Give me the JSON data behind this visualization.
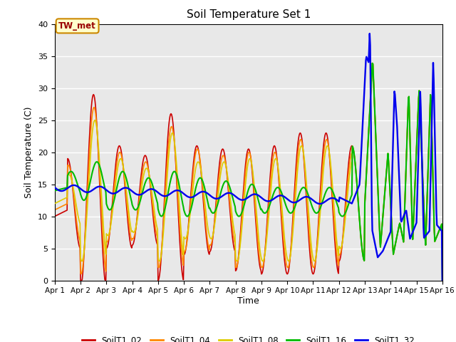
{
  "title": "Soil Temperature Set 1",
  "xlabel": "Time",
  "ylabel": "Soil Temperature (C)",
  "ylim": [
    0,
    40
  ],
  "xlim": [
    0,
    15
  ],
  "x_tick_labels": [
    "Apr 1",
    "Apr 2",
    "Apr 3",
    "Apr 4",
    "Apr 5",
    "Apr 6",
    "Apr 7",
    "Apr 8",
    "Apr 9",
    "Apr 10",
    "Apr 11",
    "Apr 12",
    "Apr 13",
    "Apr 14",
    "Apr 15",
    "Apr 16"
  ],
  "annotation_text": "TW_met",
  "colors": {
    "SoilT1_02": "#cc0000",
    "SoilT1_04": "#ff8800",
    "SoilT1_08": "#ddcc00",
    "SoilT1_16": "#00bb00",
    "SoilT1_32": "#0000ee"
  },
  "bg_color": "#e8e8e8",
  "line_width": 1.2
}
